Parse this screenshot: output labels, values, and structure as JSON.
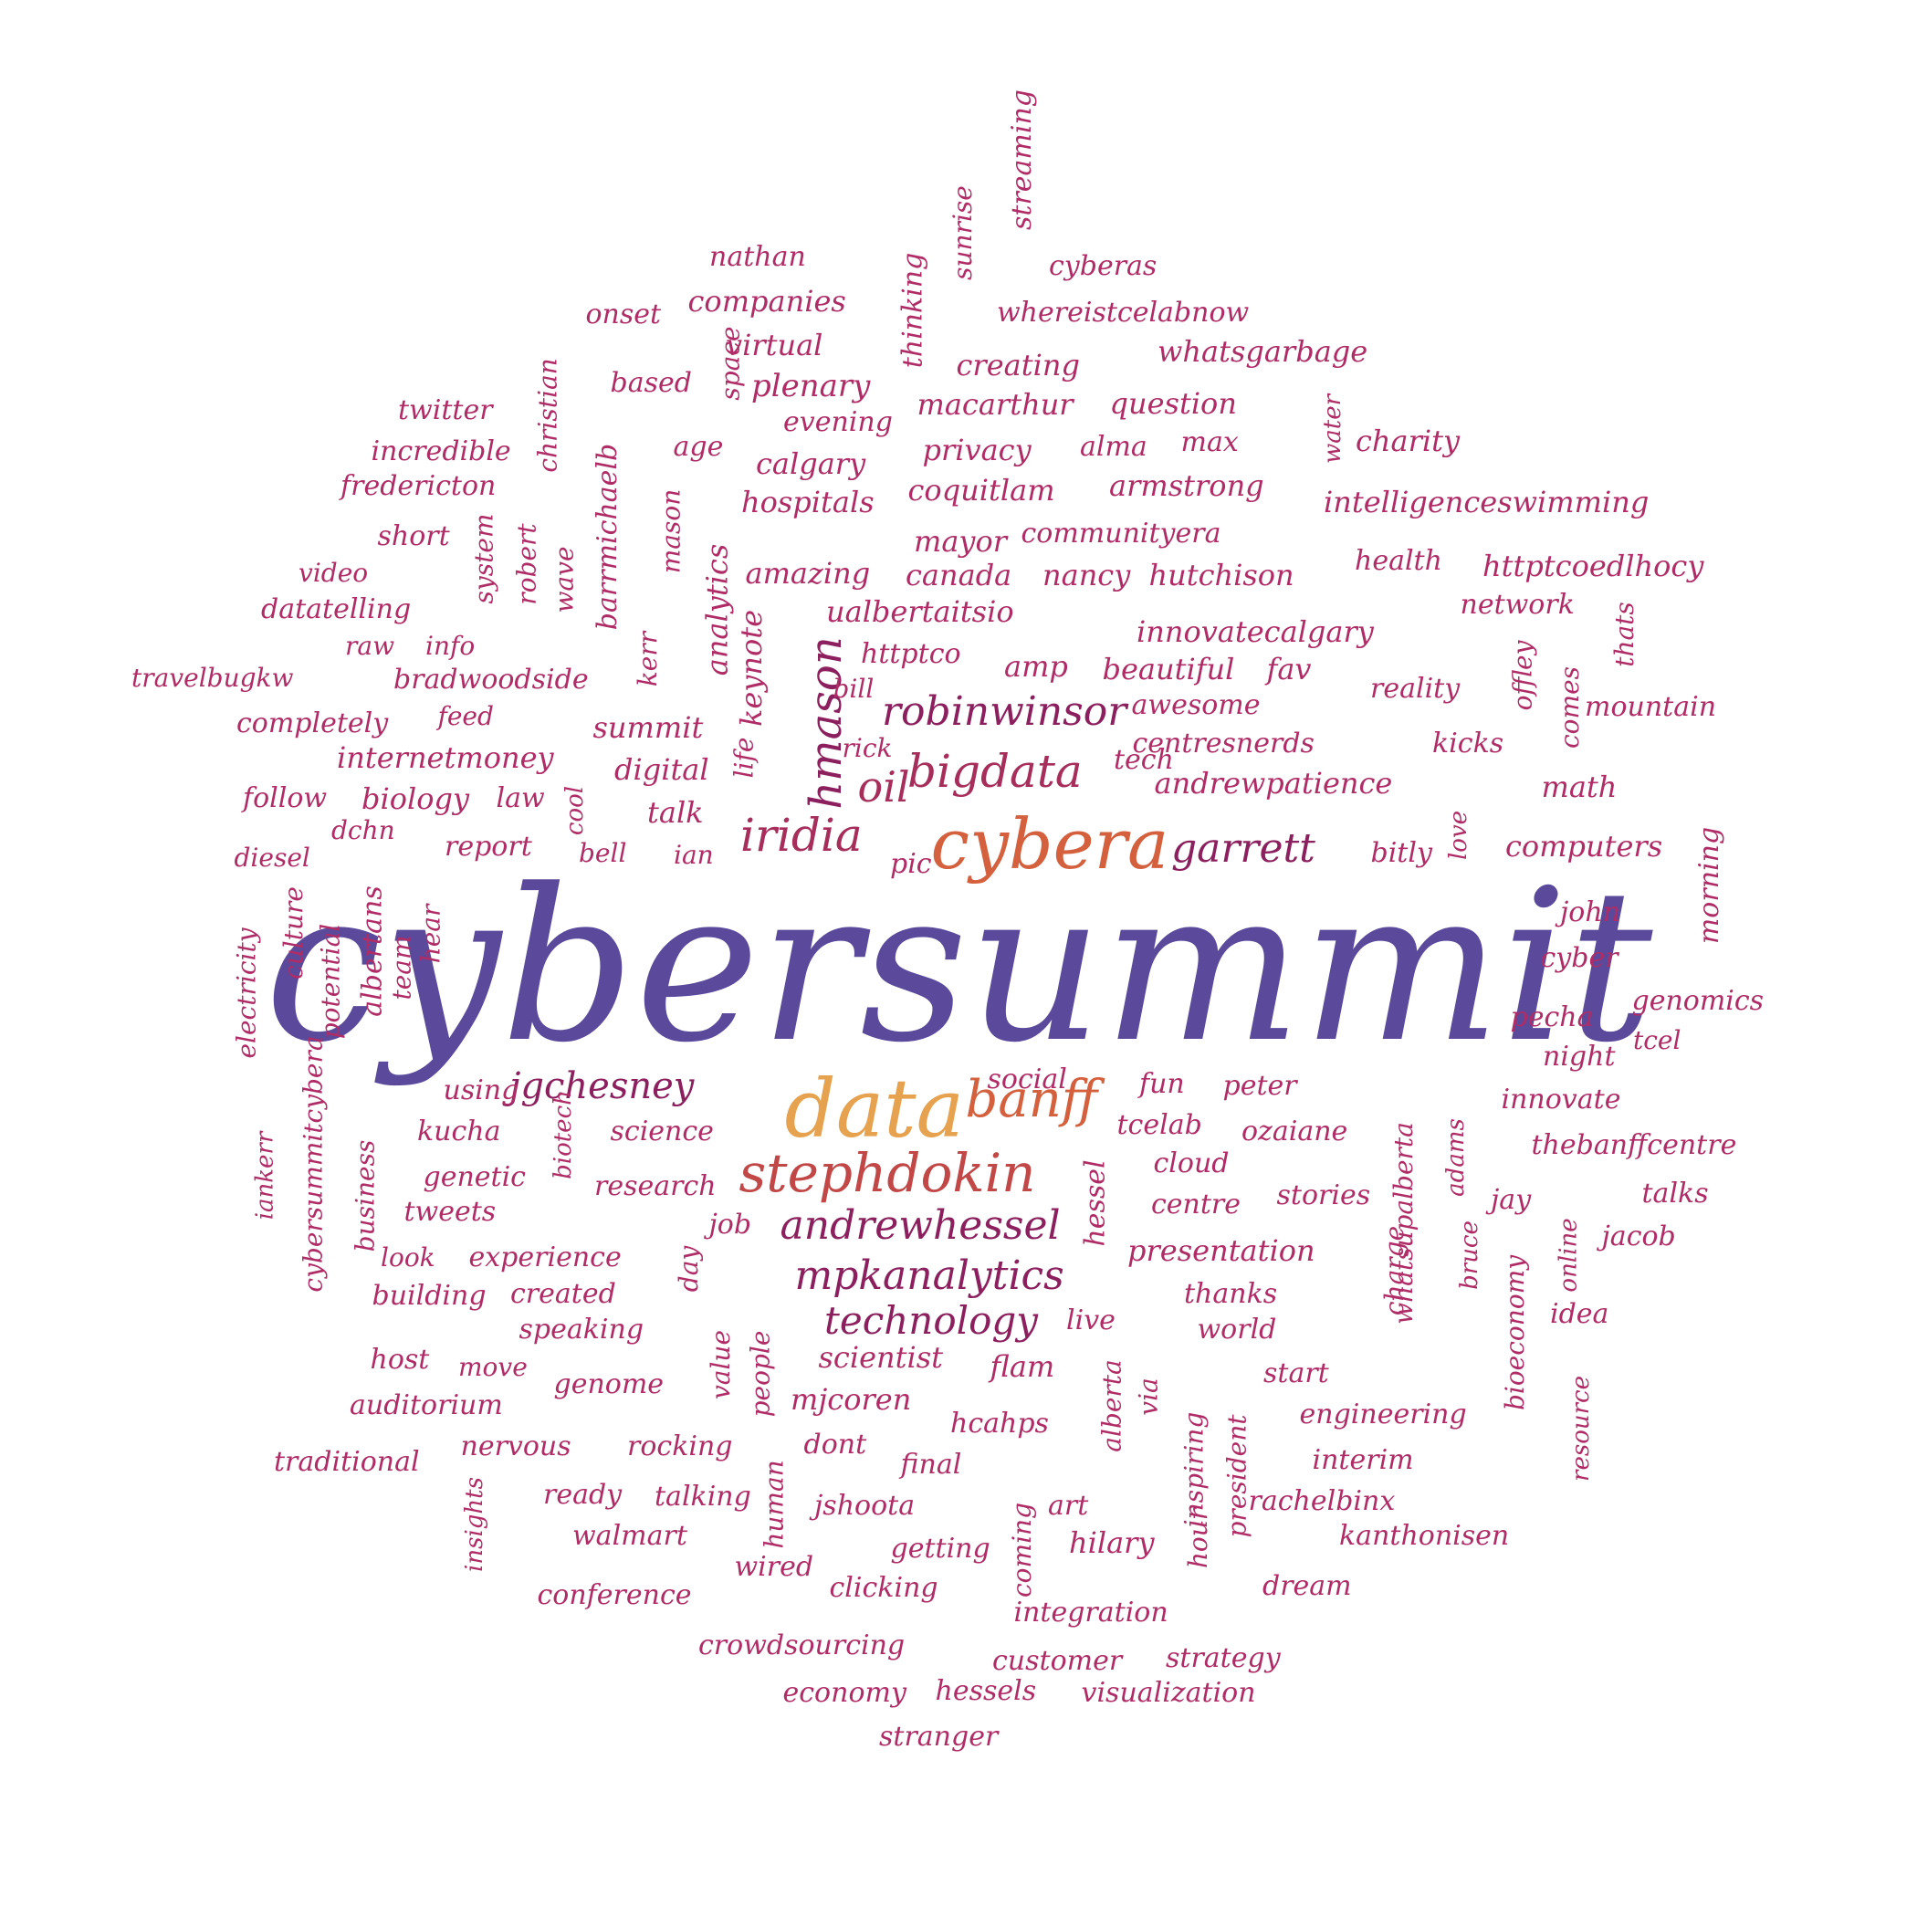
{
  "colors": {
    "background": "#ffffff",
    "primary": "#5b4a9b",
    "orange": "#e6a24f",
    "red_orange": "#d4603e",
    "brick": "#c24848",
    "rose": "#a72e5a",
    "crimson": "#9c2a5f",
    "magenta": "#b02c66",
    "plum": "#8c1f5e",
    "wine": "#7d1d55"
  },
  "words": [
    {
      "text": "cybersummit",
      "color": "primary"
    },
    {
      "text": "data",
      "color": "orange"
    },
    {
      "text": "cybera",
      "color": "red_orange"
    },
    {
      "text": "stephdokin",
      "color": "brick"
    },
    {
      "text": "bigdata",
      "color": "rose"
    },
    {
      "text": "iridia",
      "color": "rose"
    },
    {
      "text": "oil",
      "color": "rose"
    },
    {
      "text": "banff",
      "color": "red_orange"
    },
    {
      "text": "andrewhessel",
      "color": "plum"
    },
    {
      "text": "robinwinsor",
      "color": "plum"
    },
    {
      "text": "mpkanalytics",
      "color": "plum"
    },
    {
      "text": "hmason",
      "color": "plum"
    },
    {
      "text": "technology",
      "color": "plum"
    },
    {
      "text": "garrett",
      "color": "plum"
    },
    {
      "text": "jgchesney",
      "color": "plum"
    },
    {
      "text": "nathan",
      "color": "magenta"
    },
    {
      "text": "companies",
      "color": "magenta"
    },
    {
      "text": "onset",
      "color": "magenta"
    },
    {
      "text": "virtual",
      "color": "magenta"
    },
    {
      "text": "space",
      "color": "magenta"
    },
    {
      "text": "thinking",
      "color": "magenta"
    },
    {
      "text": "sunrise",
      "color": "magenta"
    },
    {
      "text": "streaming",
      "color": "magenta"
    },
    {
      "text": "cyberas",
      "color": "magenta"
    },
    {
      "text": "whereistcelabnow",
      "color": "magenta"
    },
    {
      "text": "whatsgarbage",
      "color": "magenta"
    },
    {
      "text": "creating",
      "color": "magenta"
    },
    {
      "text": "based",
      "color": "magenta"
    },
    {
      "text": "plenary",
      "color": "magenta"
    },
    {
      "text": "christian",
      "color": "magenta"
    },
    {
      "text": "twitter",
      "color": "magenta"
    },
    {
      "text": "incredible",
      "color": "magenta"
    },
    {
      "text": "fredericton",
      "color": "magenta"
    },
    {
      "text": "barrmichaelb",
      "color": "magenta"
    },
    {
      "text": "age",
      "color": "magenta"
    },
    {
      "text": "evening",
      "color": "magenta"
    },
    {
      "text": "macarthur",
      "color": "magenta"
    },
    {
      "text": "question",
      "color": "magenta"
    },
    {
      "text": "water",
      "color": "magenta"
    },
    {
      "text": "charity",
      "color": "magenta"
    },
    {
      "text": "privacy",
      "color": "magenta"
    },
    {
      "text": "alma",
      "color": "magenta"
    },
    {
      "text": "max",
      "color": "magenta"
    },
    {
      "text": "calgary",
      "color": "magenta"
    },
    {
      "text": "armstrong",
      "color": "magenta"
    },
    {
      "text": "intelligenceswimming",
      "color": "magenta"
    },
    {
      "text": "hospitals",
      "color": "magenta"
    },
    {
      "text": "coquitlam",
      "color": "magenta"
    },
    {
      "text": "system",
      "color": "magenta"
    },
    {
      "text": "short",
      "color": "magenta"
    },
    {
      "text": "robert",
      "color": "magenta"
    },
    {
      "text": "wave",
      "color": "magenta"
    },
    {
      "text": "mason",
      "color": "magenta"
    },
    {
      "text": "mayor",
      "color": "magenta"
    },
    {
      "text": "communityera",
      "color": "magenta"
    },
    {
      "text": "health",
      "color": "magenta"
    },
    {
      "text": "httptcoedlhocy",
      "color": "magenta"
    },
    {
      "text": "video",
      "color": "magenta"
    },
    {
      "text": "analytics",
      "color": "magenta"
    },
    {
      "text": "amazing",
      "color": "magenta"
    },
    {
      "text": "canada",
      "color": "magenta"
    },
    {
      "text": "nancy",
      "color": "magenta"
    },
    {
      "text": "hutchison",
      "color": "magenta"
    },
    {
      "text": "datatelling",
      "color": "magenta"
    },
    {
      "text": "keynote",
      "color": "magenta"
    },
    {
      "text": "ualbertaitsio",
      "color": "magenta"
    },
    {
      "text": "network",
      "color": "magenta"
    },
    {
      "text": "kerr",
      "color": "magenta"
    },
    {
      "text": "innovatecalgary",
      "color": "magenta"
    },
    {
      "text": "raw",
      "color": "magenta"
    },
    {
      "text": "info",
      "color": "magenta"
    },
    {
      "text": "httptco",
      "color": "magenta"
    },
    {
      "text": "offley",
      "color": "magenta"
    },
    {
      "text": "thats",
      "color": "magenta"
    },
    {
      "text": "travelbugkw",
      "color": "magenta"
    },
    {
      "text": "bradwoodside",
      "color": "magenta"
    },
    {
      "text": "amp",
      "color": "magenta"
    },
    {
      "text": "beautiful",
      "color": "magenta"
    },
    {
      "text": "fav",
      "color": "magenta"
    },
    {
      "text": "reality",
      "color": "magenta"
    },
    {
      "text": "comes",
      "color": "magenta"
    },
    {
      "text": "bill",
      "color": "magenta"
    },
    {
      "text": "awesome",
      "color": "magenta"
    },
    {
      "text": "mountain",
      "color": "magenta"
    },
    {
      "text": "completely",
      "color": "magenta"
    },
    {
      "text": "feed",
      "color": "magenta"
    },
    {
      "text": "summit",
      "color": "magenta"
    },
    {
      "text": "life",
      "color": "magenta"
    },
    {
      "text": "rick",
      "color": "magenta"
    },
    {
      "text": "centresnerds",
      "color": "magenta"
    },
    {
      "text": "kicks",
      "color": "magenta"
    },
    {
      "text": "internetmoney",
      "color": "magenta"
    },
    {
      "text": "digital",
      "color": "magenta"
    },
    {
      "text": "tech",
      "color": "magenta"
    },
    {
      "text": "follow",
      "color": "magenta"
    },
    {
      "text": "biology",
      "color": "magenta"
    },
    {
      "text": "law",
      "color": "magenta"
    },
    {
      "text": "cool",
      "color": "magenta"
    },
    {
      "text": "andrewpatience",
      "color": "magenta"
    },
    {
      "text": "math",
      "color": "magenta"
    },
    {
      "text": "talk",
      "color": "magenta"
    },
    {
      "text": "love",
      "color": "magenta"
    },
    {
      "text": "dchn",
      "color": "magenta"
    },
    {
      "text": "morning",
      "color": "magenta"
    },
    {
      "text": "report",
      "color": "magenta"
    },
    {
      "text": "bell",
      "color": "magenta"
    },
    {
      "text": "ian",
      "color": "magenta"
    },
    {
      "text": "bitly",
      "color": "magenta"
    },
    {
      "text": "computers",
      "color": "magenta"
    },
    {
      "text": "diesel",
      "color": "magenta"
    },
    {
      "text": "pic",
      "color": "magenta"
    },
    {
      "text": "hear",
      "color": "magenta"
    },
    {
      "text": "albertans",
      "color": "magenta"
    },
    {
      "text": "team",
      "color": "magenta"
    },
    {
      "text": "potential",
      "color": "magenta"
    },
    {
      "text": "culture",
      "color": "magenta"
    },
    {
      "text": "electricity",
      "color": "magenta"
    },
    {
      "text": "john",
      "color": "magenta"
    },
    {
      "text": "cyber",
      "color": "magenta"
    },
    {
      "text": "pecha",
      "color": "magenta"
    },
    {
      "text": "genomics",
      "color": "magenta"
    },
    {
      "text": "night",
      "color": "magenta"
    },
    {
      "text": "tcel",
      "color": "magenta"
    },
    {
      "text": "social",
      "color": "magenta"
    },
    {
      "text": "fun",
      "color": "magenta"
    },
    {
      "text": "peter",
      "color": "magenta"
    },
    {
      "text": "using",
      "color": "magenta"
    },
    {
      "text": "innovate",
      "color": "magenta"
    },
    {
      "text": "biotech",
      "color": "magenta"
    },
    {
      "text": "kucha",
      "color": "magenta"
    },
    {
      "text": "science",
      "color": "magenta"
    },
    {
      "text": "tcelab",
      "color": "magenta"
    },
    {
      "text": "ozaiane",
      "color": "magenta"
    },
    {
      "text": "thebanffcentre",
      "color": "magenta"
    },
    {
      "text": "business",
      "color": "magenta"
    },
    {
      "text": "whatsupalberta",
      "color": "magenta"
    },
    {
      "text": "adams",
      "color": "magenta"
    },
    {
      "text": "cloud",
      "color": "magenta"
    },
    {
      "text": "iankerr",
      "color": "magenta"
    },
    {
      "text": "genetic",
      "color": "magenta"
    },
    {
      "text": "research",
      "color": "magenta"
    },
    {
      "text": "hessel",
      "color": "magenta"
    },
    {
      "text": "stories",
      "color": "magenta"
    },
    {
      "text": "jay",
      "color": "magenta"
    },
    {
      "text": "talks",
      "color": "magenta"
    },
    {
      "text": "cybersummitcybera",
      "color": "magenta"
    },
    {
      "text": "tweets",
      "color": "magenta"
    },
    {
      "text": "job",
      "color": "magenta"
    },
    {
      "text": "centre",
      "color": "magenta"
    },
    {
      "text": "bruce",
      "color": "magenta"
    },
    {
      "text": "online",
      "color": "magenta"
    },
    {
      "text": "jacob",
      "color": "magenta"
    },
    {
      "text": "look",
      "color": "magenta"
    },
    {
      "text": "experience",
      "color": "magenta"
    },
    {
      "text": "day",
      "color": "magenta"
    },
    {
      "text": "presentation",
      "color": "magenta"
    },
    {
      "text": "charge",
      "color": "magenta"
    },
    {
      "text": "building",
      "color": "magenta"
    },
    {
      "text": "created",
      "color": "magenta"
    },
    {
      "text": "thanks",
      "color": "magenta"
    },
    {
      "text": "bioeconomy",
      "color": "magenta"
    },
    {
      "text": "speaking",
      "color": "magenta"
    },
    {
      "text": "live",
      "color": "magenta"
    },
    {
      "text": "world",
      "color": "magenta"
    },
    {
      "text": "idea",
      "color": "magenta"
    },
    {
      "text": "value",
      "color": "magenta"
    },
    {
      "text": "people",
      "color": "magenta"
    },
    {
      "text": "host",
      "color": "magenta"
    },
    {
      "text": "move",
      "color": "magenta"
    },
    {
      "text": "scientist",
      "color": "magenta"
    },
    {
      "text": "flam",
      "color": "magenta"
    },
    {
      "text": "start",
      "color": "magenta"
    },
    {
      "text": "genome",
      "color": "magenta"
    },
    {
      "text": "alberta",
      "color": "magenta"
    },
    {
      "text": "via",
      "color": "magenta"
    },
    {
      "text": "auditorium",
      "color": "magenta"
    },
    {
      "text": "mjcoren",
      "color": "magenta"
    },
    {
      "text": "engineering",
      "color": "magenta"
    },
    {
      "text": "resource",
      "color": "magenta"
    },
    {
      "text": "nervous",
      "color": "magenta"
    },
    {
      "text": "rocking",
      "color": "magenta"
    },
    {
      "text": "dont",
      "color": "magenta"
    },
    {
      "text": "hcahps",
      "color": "magenta"
    },
    {
      "text": "inspiring",
      "color": "magenta"
    },
    {
      "text": "president",
      "color": "magenta"
    },
    {
      "text": "traditional",
      "color": "magenta"
    },
    {
      "text": "final",
      "color": "magenta"
    },
    {
      "text": "interim",
      "color": "magenta"
    },
    {
      "text": "insights",
      "color": "magenta"
    },
    {
      "text": "ready",
      "color": "magenta"
    },
    {
      "text": "talking",
      "color": "magenta"
    },
    {
      "text": "human",
      "color": "magenta"
    },
    {
      "text": "art",
      "color": "magenta"
    },
    {
      "text": "rachelbinx",
      "color": "magenta"
    },
    {
      "text": "jshoota",
      "color": "magenta"
    },
    {
      "text": "walmart",
      "color": "magenta"
    },
    {
      "text": "getting",
      "color": "magenta"
    },
    {
      "text": "hilary",
      "color": "magenta"
    },
    {
      "text": "hour",
      "color": "magenta"
    },
    {
      "text": "kanthonisen",
      "color": "magenta"
    },
    {
      "text": "coming",
      "color": "magenta"
    },
    {
      "text": "wired",
      "color": "magenta"
    },
    {
      "text": "clicking",
      "color": "magenta"
    },
    {
      "text": "conference",
      "color": "magenta"
    },
    {
      "text": "dream",
      "color": "magenta"
    },
    {
      "text": "integration",
      "color": "magenta"
    },
    {
      "text": "crowdsourcing",
      "color": "magenta"
    },
    {
      "text": "customer",
      "color": "magenta"
    },
    {
      "text": "strategy",
      "color": "magenta"
    },
    {
      "text": "economy",
      "color": "magenta"
    },
    {
      "text": "hessels",
      "color": "magenta"
    },
    {
      "text": "visualization",
      "color": "magenta"
    },
    {
      "text": "stranger",
      "color": "magenta"
    }
  ]
}
